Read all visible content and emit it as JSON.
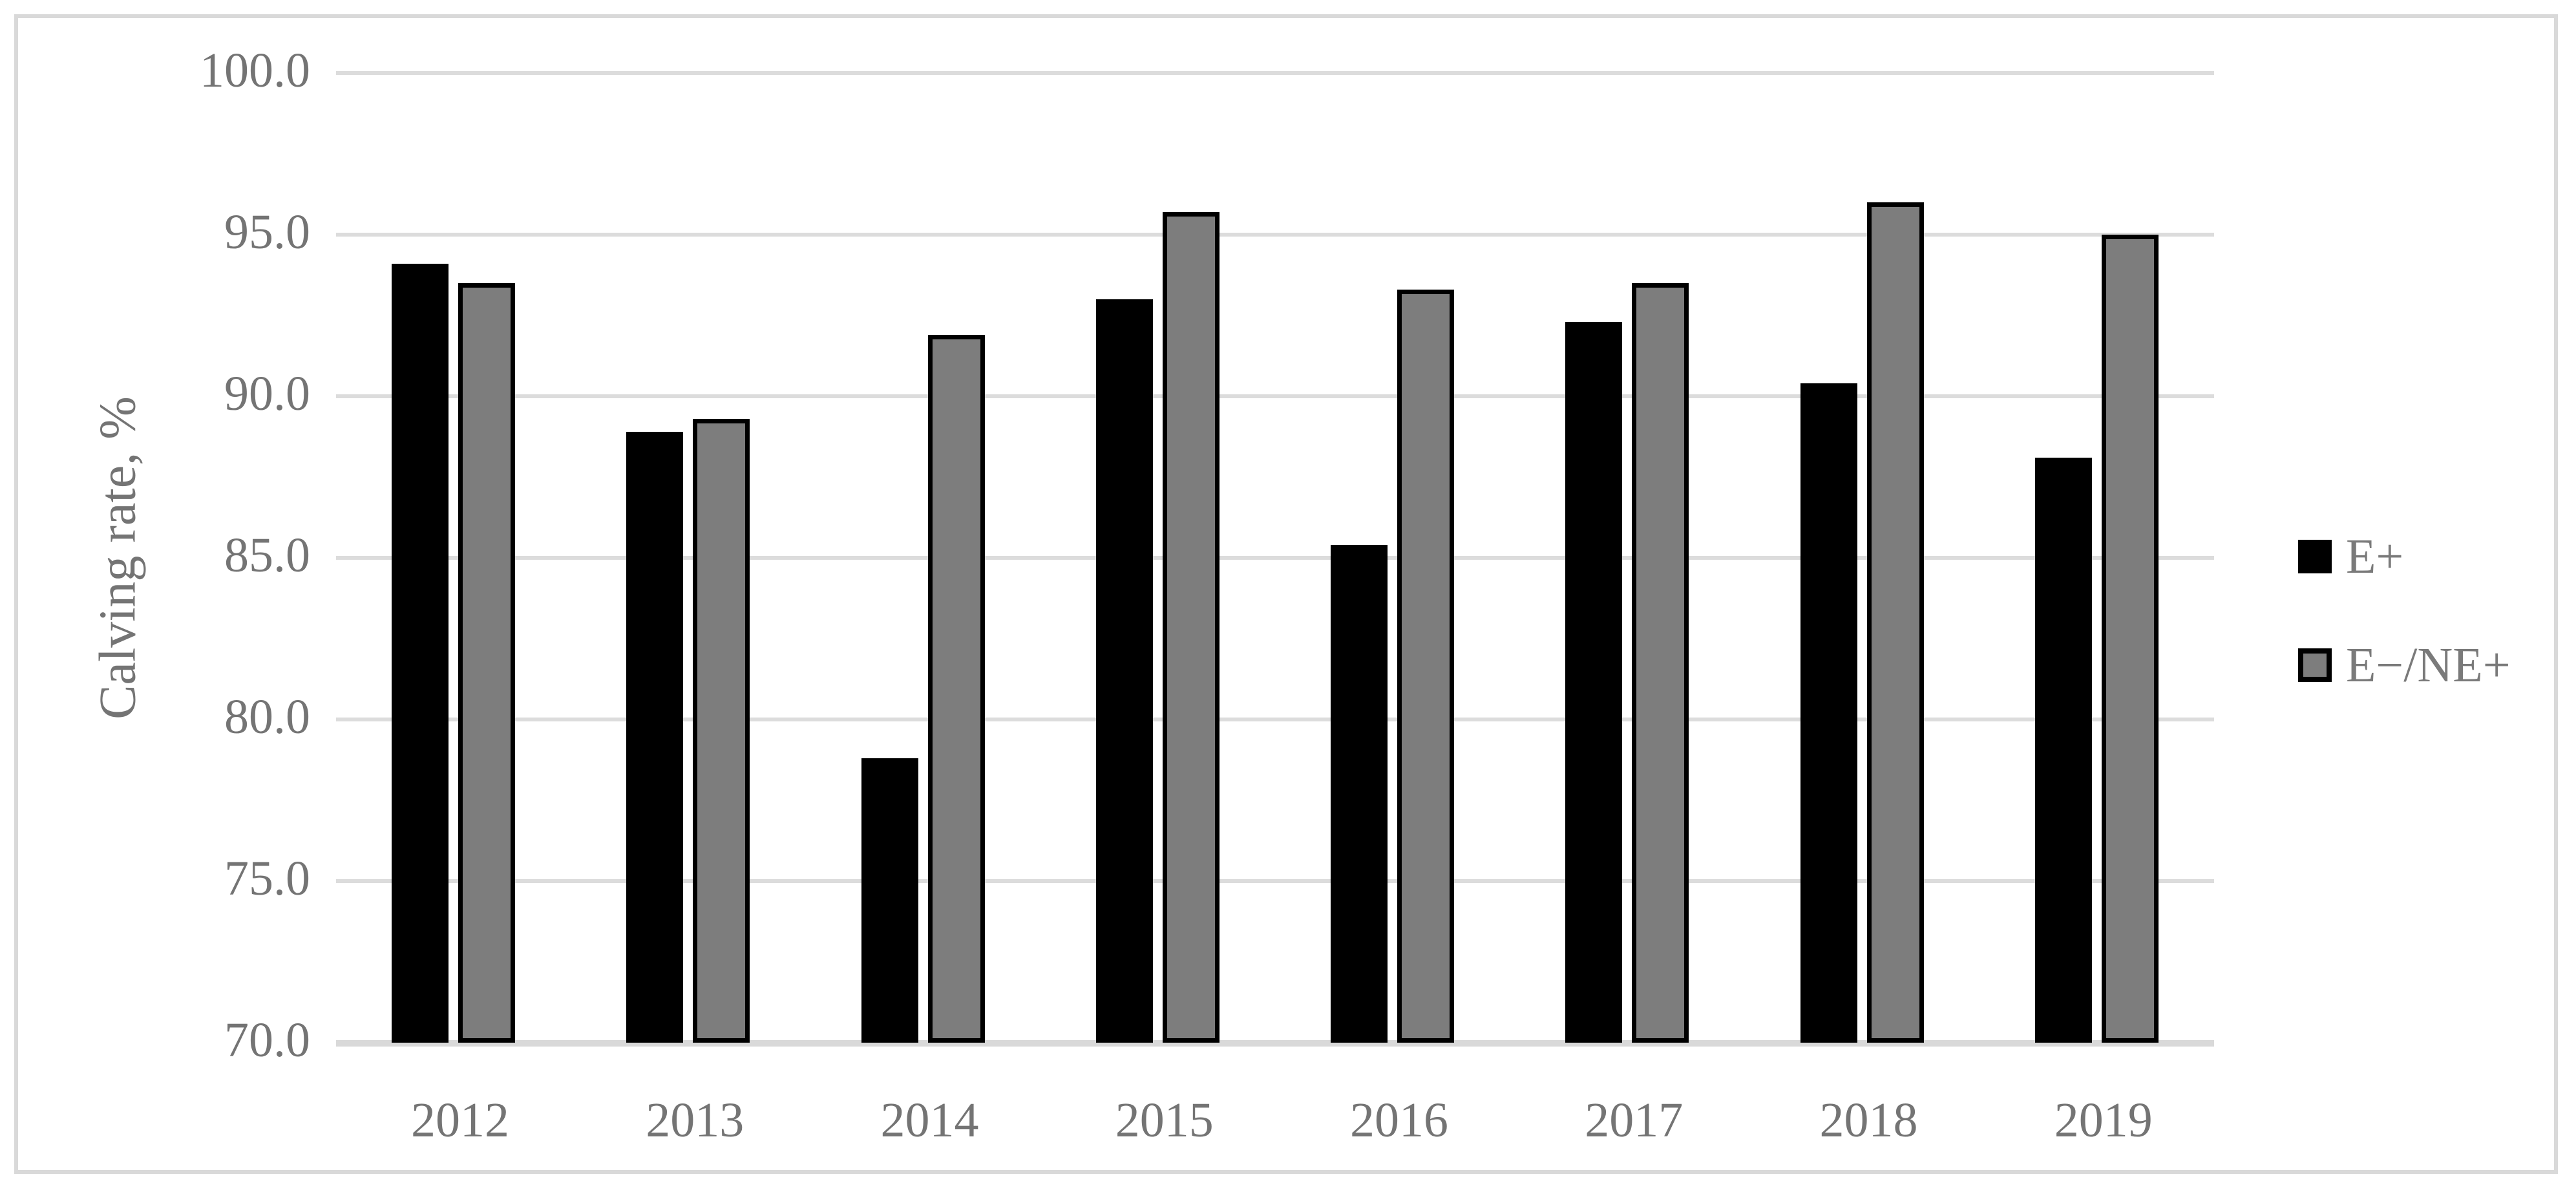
{
  "chart_data": {
    "type": "bar",
    "title": "",
    "categories": [
      "2012",
      "2013",
      "2014",
      "2015",
      "2016",
      "2017",
      "2018",
      "2019"
    ],
    "series": [
      {
        "name": "E+",
        "color": "#000000",
        "values": [
          94.1,
          88.9,
          78.8,
          93.0,
          85.4,
          92.3,
          90.4,
          88.1
        ]
      },
      {
        "name": "E−/NE+",
        "color": "#7d7d7d",
        "border_color": "#000000",
        "values": [
          93.5,
          89.3,
          91.9,
          95.7,
          93.3,
          93.5,
          96.0,
          95.0
        ]
      }
    ],
    "xlabel": "",
    "ylabel": "Calving rate, %",
    "ylim": [
      70,
      100
    ],
    "ytick_step": 5,
    "ytick_decimals": 1,
    "ytick_labels": [
      "100.0",
      "95.0",
      "90.0",
      "85.0",
      "80.0",
      "75.0",
      "70.0"
    ],
    "grid": true,
    "legend_position": "right",
    "colors": {
      "gridline": "#dcdcdc",
      "axis_line": "#d9d9d9",
      "frame_border": "#d9d9d9",
      "tick_text": "#747474",
      "legend_text": "#7a7a7a"
    }
  }
}
